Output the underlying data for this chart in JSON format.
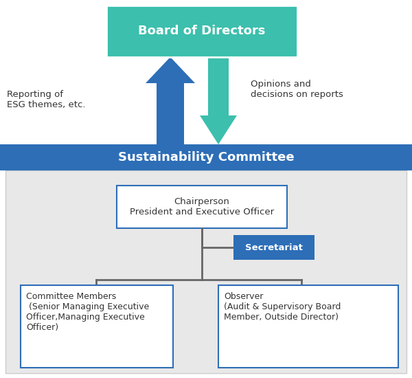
{
  "board_label": "Board of Directors",
  "board_bg": "#3cbfad",
  "board_border_color": "white",
  "board_text_color": "#ffffff",
  "sc_bar_bg": "#2d6eb7",
  "sc_bar_text": "Sustainability Committee",
  "sc_bar_text_color": "#ffffff",
  "inner_bg": "#e8e8e8",
  "inner_border": "#cccccc",
  "chairperson_label": "Chairperson\nPresident and Executive Officer",
  "secretariat_label": "Secretariat",
  "secretariat_bg": "#2d6eb7",
  "secretariat_text_color": "#ffffff",
  "members_label": "Committee Members\n (Senior Managing Executive\nOfficer,Managing Executive\nOfficer)",
  "observer_label": "Observer\n(Audit & Supervisory Board\nMember, Outside Director)",
  "box_border": "#2d6eb7",
  "box_text_color": "#333333",
  "line_color": "#666666",
  "up_arrow_color": "#2d6eb7",
  "down_arrow_color": "#3cbfad",
  "reporting_text": "Reporting of\nESG themes, etc.",
  "opinions_text": "Opinions and\ndecisions on reports",
  "label_color": "#333333",
  "white": "#ffffff",
  "fig_bg": "#ffffff"
}
